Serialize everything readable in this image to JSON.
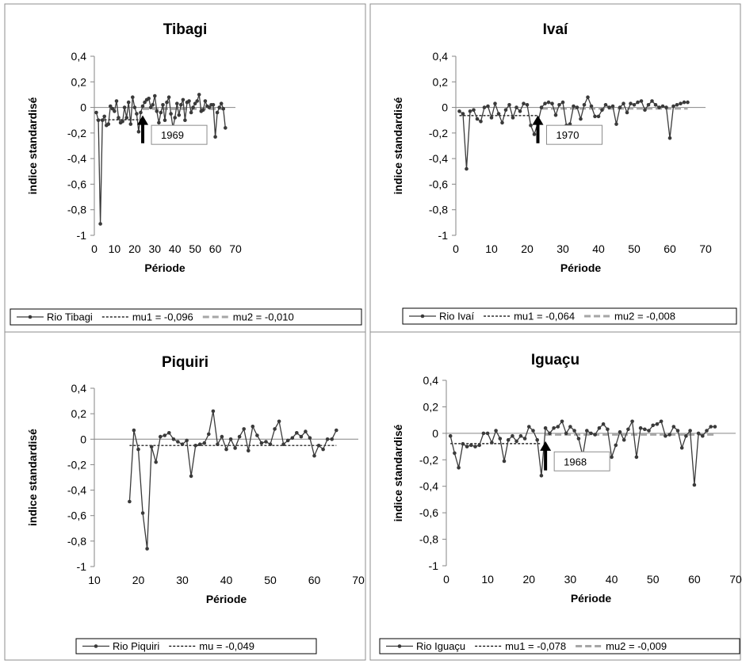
{
  "chart_data": [
    {
      "type": "line",
      "title": "Tibagi",
      "xlabel": "Période",
      "ylabel": "indice standardisé",
      "xlim": [
        0,
        70
      ],
      "ylim": [
        -1,
        0.4
      ],
      "x_ticks": [
        "0",
        "10",
        "20",
        "30",
        "40",
        "50",
        "60",
        "70"
      ],
      "y_ticks": [
        "0,4",
        "0,2",
        "0",
        "-0,2",
        "-0,4",
        "-0,6",
        "-0,8",
        "-1"
      ],
      "series": [
        {
          "name": "Rio Tibagi",
          "x": [
            1,
            2,
            3,
            4,
            5,
            6,
            7,
            8,
            9,
            10,
            11,
            12,
            13,
            14,
            15,
            16,
            17,
            18,
            19,
            20,
            21,
            22,
            23,
            24,
            25,
            26,
            27,
            28,
            29,
            30,
            31,
            32,
            33,
            34,
            35,
            36,
            37,
            38,
            39,
            40,
            41,
            42,
            43,
            44,
            45,
            46,
            47,
            48,
            49,
            50,
            51,
            52,
            53,
            54,
            55,
            56,
            57,
            58,
            59,
            60,
            61,
            62,
            63,
            64,
            65
          ],
          "values": [
            -0.04,
            -0.1,
            -0.91,
            -0.1,
            -0.07,
            -0.14,
            -0.13,
            0.01,
            -0.01,
            -0.03,
            0.05,
            -0.08,
            -0.12,
            -0.11,
            0.0,
            -0.08,
            0.04,
            -0.13,
            0.08,
            0.0,
            -0.05,
            -0.19,
            -0.04,
            0.01,
            0.04,
            0.06,
            0.07,
            0.0,
            0.02,
            0.09,
            -0.03,
            -0.12,
            -0.04,
            0.02,
            -0.1,
            0.04,
            0.08,
            -0.05,
            -0.16,
            -0.08,
            0.03,
            -0.06,
            0.02,
            0.06,
            -0.1,
            0.04,
            0.05,
            -0.04,
            0.0,
            0.03,
            0.05,
            0.1,
            -0.03,
            -0.02,
            0.05,
            0.01,
            0.0,
            0.02,
            0.02,
            -0.23,
            -0.04,
            0.0,
            0.03,
            -0.01,
            -0.16
          ]
        },
        {
          "name": "mu1 = -0,096",
          "x": [
            1,
            23
          ],
          "values": [
            -0.096,
            -0.096
          ]
        },
        {
          "name": "mu2 = -0,010",
          "x": [
            24,
            65
          ],
          "values": [
            -0.01,
            -0.01
          ]
        }
      ],
      "annotation": {
        "label": "1969",
        "x": 24
      }
    },
    {
      "type": "line",
      "title": "Ivaí",
      "xlabel": "Période",
      "ylabel": "indice standardisé",
      "xlim": [
        0,
        70
      ],
      "ylim": [
        -1,
        0.4
      ],
      "x_ticks": [
        "0",
        "10",
        "20",
        "30",
        "40",
        "50",
        "60",
        "70"
      ],
      "y_ticks": [
        "0,4",
        "0,2",
        "0",
        "-0,2",
        "-0,4",
        "-0,6",
        "-0,8",
        "-1"
      ],
      "series": [
        {
          "name": "Rio Ivaí",
          "x": [
            1,
            2,
            3,
            4,
            5,
            6,
            7,
            8,
            9,
            10,
            11,
            12,
            13,
            14,
            15,
            16,
            17,
            18,
            19,
            20,
            21,
            22,
            23,
            24,
            25,
            26,
            27,
            28,
            29,
            30,
            31,
            32,
            33,
            34,
            35,
            36,
            37,
            38,
            39,
            40,
            41,
            42,
            43,
            44,
            45,
            46,
            47,
            48,
            49,
            50,
            51,
            52,
            53,
            54,
            55,
            56,
            57,
            58,
            59,
            60,
            61,
            62,
            63,
            64,
            65
          ],
          "values": [
            -0.03,
            -0.05,
            -0.48,
            -0.03,
            -0.02,
            -0.09,
            -0.11,
            0.0,
            0.01,
            -0.08,
            0.03,
            -0.05,
            -0.12,
            -0.02,
            0.02,
            -0.08,
            0.0,
            -0.03,
            0.03,
            0.02,
            -0.14,
            -0.21,
            -0.12,
            0.0,
            0.03,
            0.04,
            0.03,
            -0.06,
            0.02,
            0.04,
            -0.14,
            -0.13,
            0.01,
            0.0,
            -0.09,
            0.02,
            0.08,
            0.01,
            -0.07,
            -0.07,
            -0.02,
            0.02,
            0.0,
            0.01,
            -0.13,
            0.0,
            0.03,
            -0.04,
            0.03,
            0.02,
            0.04,
            0.05,
            -0.02,
            0.02,
            0.05,
            0.02,
            0.0,
            0.01,
            0.0,
            -0.24,
            0.01,
            0.02,
            0.03,
            0.04,
            0.04
          ]
        },
        {
          "name": "mu1 = -0,064",
          "x": [
            1,
            23
          ],
          "values": [
            -0.064,
            -0.064
          ]
        },
        {
          "name": "mu2 = -0,008",
          "x": [
            24,
            65
          ],
          "values": [
            -0.008,
            -0.008
          ]
        }
      ],
      "annotation": {
        "label": "1970",
        "x": 23
      }
    },
    {
      "type": "line",
      "title": "Piquiri",
      "xlabel": "Période",
      "ylabel": "indice standardisé",
      "xlim": [
        10,
        70
      ],
      "ylim": [
        -1,
        0.4
      ],
      "x_ticks": [
        "10",
        "20",
        "30",
        "40",
        "50",
        "60",
        "70"
      ],
      "y_ticks": [
        "0,4",
        "0,2",
        "0",
        "-0,2",
        "-0,4",
        "-0,6",
        "-0,8",
        "-1"
      ],
      "series": [
        {
          "name": "Rio Piquiri",
          "x": [
            18,
            19,
            20,
            21,
            22,
            23,
            24,
            25,
            26,
            27,
            28,
            29,
            30,
            31,
            32,
            33,
            34,
            35,
            36,
            37,
            38,
            39,
            40,
            41,
            42,
            43,
            44,
            45,
            46,
            47,
            48,
            49,
            50,
            51,
            52,
            53,
            54,
            55,
            56,
            57,
            58,
            59,
            60,
            61,
            62,
            63,
            64,
            65
          ],
          "values": [
            -0.49,
            0.07,
            -0.08,
            -0.58,
            -0.86,
            -0.06,
            -0.18,
            0.02,
            0.03,
            0.05,
            0.0,
            -0.02,
            -0.04,
            -0.01,
            -0.29,
            -0.05,
            -0.04,
            -0.03,
            0.04,
            0.22,
            -0.04,
            0.02,
            -0.08,
            0.0,
            -0.07,
            0.02,
            0.08,
            -0.09,
            0.1,
            0.03,
            -0.03,
            -0.02,
            -0.04,
            0.08,
            0.14,
            -0.04,
            -0.01,
            0.01,
            0.05,
            0.02,
            0.06,
            0.01,
            -0.13,
            -0.05,
            -0.08,
            0.0,
            0.0,
            0.07
          ]
        },
        {
          "name": "mu = -0,049",
          "x": [
            18,
            65
          ],
          "values": [
            -0.049,
            -0.049
          ]
        }
      ]
    },
    {
      "type": "line",
      "title": "Iguaçu",
      "xlabel": "Période",
      "ylabel": "indice standardisé",
      "xlim": [
        0,
        70
      ],
      "ylim": [
        -1,
        0.4
      ],
      "x_ticks": [
        "0",
        "10",
        "20",
        "30",
        "40",
        "50",
        "60",
        "70"
      ],
      "y_ticks": [
        "0,4",
        "0,2",
        "0",
        "-0,2",
        "-0,4",
        "-0,6",
        "-0,8",
        "-1"
      ],
      "series": [
        {
          "name": "Rio Iguaçu",
          "x": [
            1,
            2,
            3,
            4,
            5,
            6,
            7,
            8,
            9,
            10,
            11,
            12,
            13,
            14,
            15,
            16,
            17,
            18,
            19,
            20,
            21,
            22,
            23,
            24,
            25,
            26,
            27,
            28,
            29,
            30,
            31,
            32,
            33,
            34,
            35,
            36,
            37,
            38,
            39,
            40,
            41,
            42,
            43,
            44,
            45,
            46,
            47,
            48,
            49,
            50,
            51,
            52,
            53,
            54,
            55,
            56,
            57,
            58,
            59,
            60,
            61,
            62,
            63,
            64,
            65
          ],
          "values": [
            -0.02,
            -0.15,
            -0.26,
            -0.08,
            -0.1,
            -0.09,
            -0.1,
            -0.09,
            0.0,
            0.0,
            -0.07,
            0.02,
            -0.04,
            -0.21,
            -0.05,
            -0.02,
            -0.06,
            -0.02,
            -0.04,
            0.05,
            0.02,
            -0.05,
            -0.32,
            0.04,
            0.0,
            0.04,
            0.05,
            0.09,
            0.0,
            0.05,
            0.02,
            -0.04,
            -0.17,
            0.02,
            0.0,
            -0.01,
            0.04,
            0.07,
            0.03,
            -0.18,
            -0.09,
            0.01,
            -0.05,
            0.03,
            0.09,
            -0.18,
            0.04,
            0.03,
            0.02,
            0.06,
            0.07,
            0.09,
            -0.02,
            -0.01,
            0.05,
            0.02,
            -0.11,
            -0.02,
            0.02,
            -0.39,
            0.0,
            -0.02,
            0.02,
            0.05,
            0.05
          ]
        },
        {
          "name": "mu1 = -0,078",
          "x": [
            1,
            23
          ],
          "values": [
            -0.078,
            -0.078
          ]
        },
        {
          "name": "mu2 = -0,009",
          "x": [
            24,
            65
          ],
          "values": [
            -0.009,
            -0.009
          ]
        }
      ],
      "annotation": {
        "label": "1968",
        "x": 24
      }
    }
  ]
}
